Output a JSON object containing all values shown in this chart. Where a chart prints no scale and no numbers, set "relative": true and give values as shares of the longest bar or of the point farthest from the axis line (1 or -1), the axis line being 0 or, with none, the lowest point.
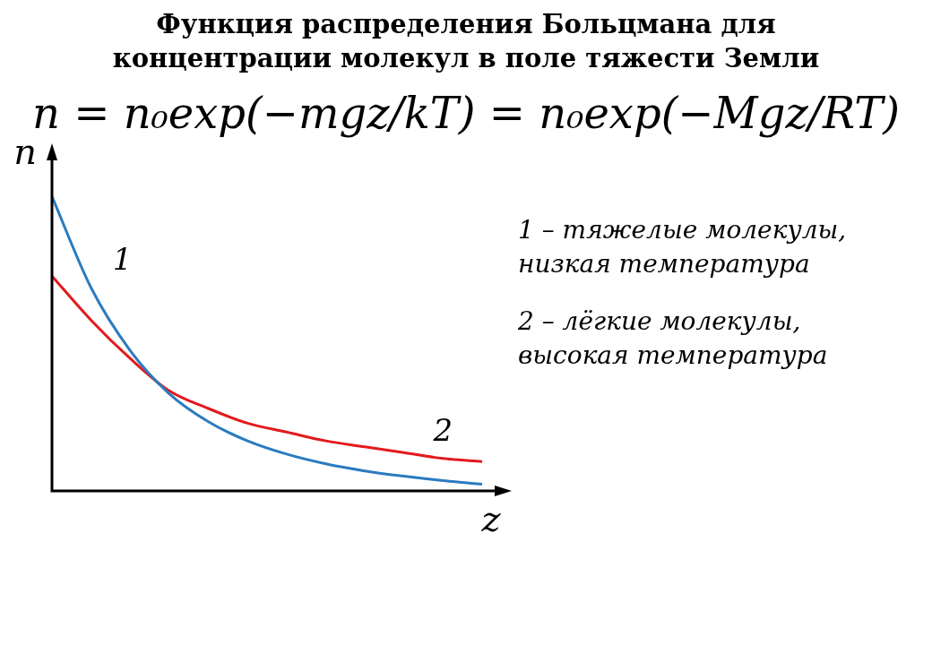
{
  "chart_data": {
    "type": "line",
    "title": "Функция распределения Больцмана для концентрации молекул в поле тяжести Земли",
    "subtitle": "n = n₀exp(−mgz/kT) = n₀exp(−Mgz/RT)",
    "xlabel": "z",
    "ylabel": "n",
    "relative": true,
    "marker": "none",
    "tick_labels": false,
    "categories": [
      null,
      null,
      null,
      null,
      null,
      null,
      null,
      null,
      null,
      null,
      null,
      null
    ],
    "series": [
      {
        "name": "1",
        "color": "#2a7bbf",
        "values": [
          1,
          0.69,
          0.477,
          0.33,
          0.235,
          0.17,
          0.125,
          0.092,
          0.068,
          0.05,
          0.035,
          0.023
        ]
      },
      {
        "name": "2",
        "color": "#e3191c",
        "values": [
          0.73,
          0.58,
          0.45,
          0.34,
          0.28,
          0.23,
          0.2,
          0.17,
          0.15,
          0.13,
          0.11,
          0.1
        ]
      }
    ],
    "annotations": [
      "1 – тяжелые молекулы, низкая температура",
      "2 – лёгкие молекулы, высокая температура"
    ]
  }
}
